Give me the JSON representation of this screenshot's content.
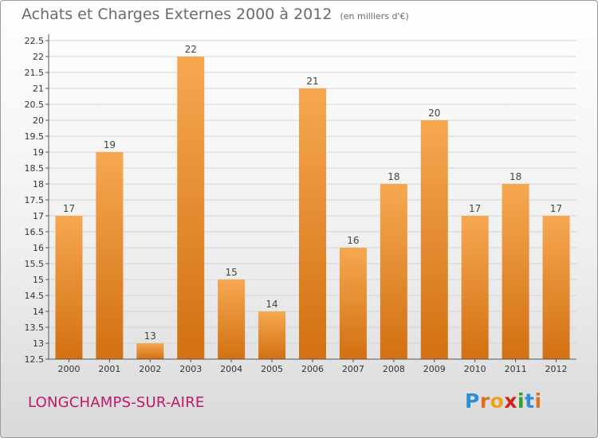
{
  "header": {
    "title": "Achats et Charges Externes 2000 à 2012",
    "subtitle": "(en milliers d'€)"
  },
  "footer": {
    "commune": "LONGCHAMPS-SUR-AIRE",
    "logo_letters": [
      "P",
      "r",
      "o",
      "x",
      "i",
      "t",
      "i"
    ],
    "logo_colors": [
      "#2f8fd6",
      "#e07020",
      "#f0a020",
      "#d02020",
      "#30a030",
      "#2f8fd6",
      "#e07020"
    ]
  },
  "colors": {
    "bar_light": "#f6a851",
    "bar_dark": "#d27012",
    "grid": "#d4d4d4",
    "commune": "#c0176b"
  },
  "chart_data": {
    "type": "bar",
    "categories": [
      "2000",
      "2001",
      "2002",
      "2003",
      "2004",
      "2005",
      "2006",
      "2007",
      "2008",
      "2009",
      "2010",
      "2011",
      "2012"
    ],
    "values": [
      17,
      19,
      13,
      22,
      15,
      14,
      21,
      16,
      18,
      20,
      17,
      18,
      17
    ],
    "data_labels": [
      "17",
      "19",
      "13",
      "22",
      "15",
      "14",
      "21",
      "16",
      "18",
      "20",
      "17",
      "18",
      "17"
    ],
    "ylim": [
      12.5,
      22.5
    ],
    "yticks": [
      "12.5",
      "13",
      "13.5",
      "14",
      "14.5",
      "15",
      "15.5",
      "16",
      "16.5",
      "17",
      "17.5",
      "18",
      "18.5",
      "19",
      "19.5",
      "20",
      "20.5",
      "21",
      "21.5",
      "22",
      "22.5"
    ],
    "grid": true,
    "legend": "none"
  }
}
